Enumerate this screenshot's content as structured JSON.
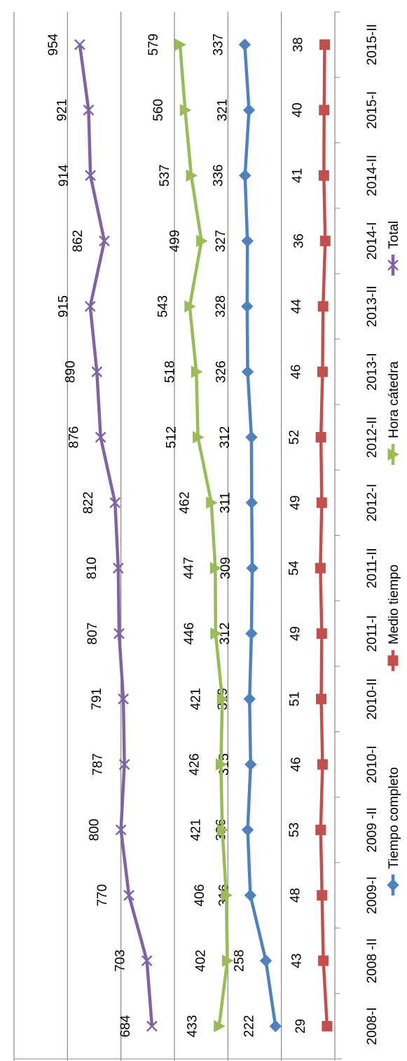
{
  "chart_data": {
    "type": "line",
    "orientation": "rotated-90-counterclockwise",
    "categories": [
      "2008-I",
      "2008 -II",
      "2009-I",
      "2009 -II",
      "2010-I",
      "2010-II",
      "2011-I",
      "2011-II",
      "2012-I",
      "2012-II",
      "2013-I",
      "2013-II",
      "2014-I",
      "2014-II",
      "2015-I",
      "2015-II"
    ],
    "series": [
      {
        "name": "Tiempo completo",
        "color": "#4f81bd",
        "marker": "diamond",
        "values": [
          222,
          258,
          316,
          326,
          315,
          319,
          312,
          309,
          311,
          312,
          326,
          328,
          327,
          336,
          321,
          337
        ]
      },
      {
        "name": "Medio tiempo",
        "color": "#c0504d",
        "marker": "square",
        "values": [
          29,
          43,
          48,
          53,
          46,
          51,
          49,
          54,
          49,
          52,
          46,
          44,
          36,
          41,
          40,
          38
        ]
      },
      {
        "name": "Hora cátedra",
        "color": "#9bbb59",
        "marker": "triangle",
        "values": [
          433,
          402,
          406,
          421,
          426,
          421,
          446,
          447,
          462,
          512,
          518,
          543,
          499,
          537,
          560,
          579
        ]
      },
      {
        "name": "Total",
        "color": "#8064a2",
        "marker": "x",
        "values": [
          684,
          703,
          770,
          800,
          787,
          791,
          807,
          810,
          822,
          876,
          890,
          915,
          862,
          914,
          921,
          954
        ]
      }
    ],
    "ylim": [
      0,
      1200
    ],
    "yticks": [
      "0",
      "200",
      "400",
      "600",
      "800",
      "1000",
      "1200"
    ],
    "grid": true,
    "data_labels": true,
    "legend": "bottom"
  }
}
